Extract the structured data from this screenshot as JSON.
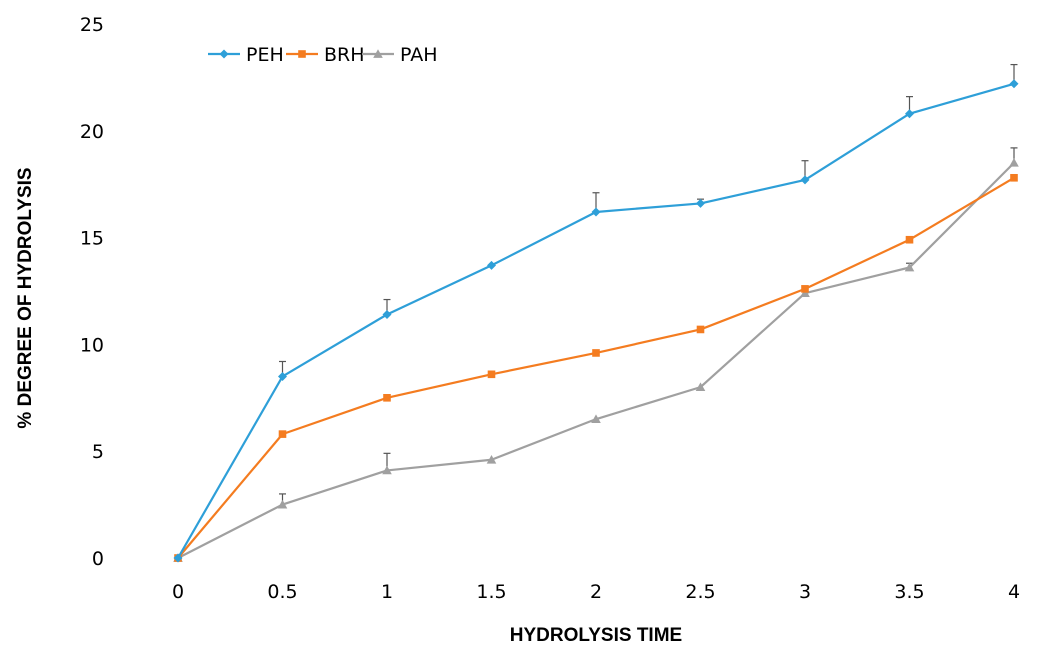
{
  "chart_data": {
    "type": "line",
    "xlabel": "HYDROLYSIS TIME",
    "ylabel": "% DEGREE OF HYDROLYSIS",
    "x": [
      0,
      0.5,
      1,
      1.5,
      2,
      2.5,
      3,
      3.5,
      4
    ],
    "x_tick_labels": [
      "0",
      "0.5",
      "1",
      "1.5",
      "2",
      "2.5",
      "3",
      "3.5",
      "4"
    ],
    "y_tick_labels": [
      "0",
      "5",
      "10",
      "15",
      "20",
      "25"
    ],
    "ylim": [
      0,
      25
    ],
    "grid": false,
    "legend_position": "top-left",
    "series": [
      {
        "name": "PEH",
        "color": "#2e9fd8",
        "marker": "diamond",
        "values": [
          0,
          8.5,
          11.4,
          13.7,
          16.2,
          16.6,
          17.7,
          20.8,
          22.2
        ],
        "error": [
          0,
          0.7,
          0.7,
          0,
          0.9,
          0.2,
          0.9,
          0.8,
          0.9
        ]
      },
      {
        "name": "BRH",
        "color": "#f47c20",
        "marker": "square",
        "values": [
          0,
          5.8,
          7.5,
          8.6,
          9.6,
          10.7,
          12.6,
          14.9,
          17.8
        ],
        "error": [
          0,
          0,
          0,
          0,
          0,
          0,
          0,
          0,
          0
        ]
      },
      {
        "name": "PAH",
        "color": "#a0a0a0",
        "marker": "triangle",
        "values": [
          0,
          2.5,
          4.1,
          4.6,
          6.5,
          8.0,
          12.4,
          13.6,
          18.5
        ],
        "error": [
          0,
          0.5,
          0.8,
          0,
          0,
          0,
          0,
          0.2,
          0.7
        ]
      }
    ]
  }
}
